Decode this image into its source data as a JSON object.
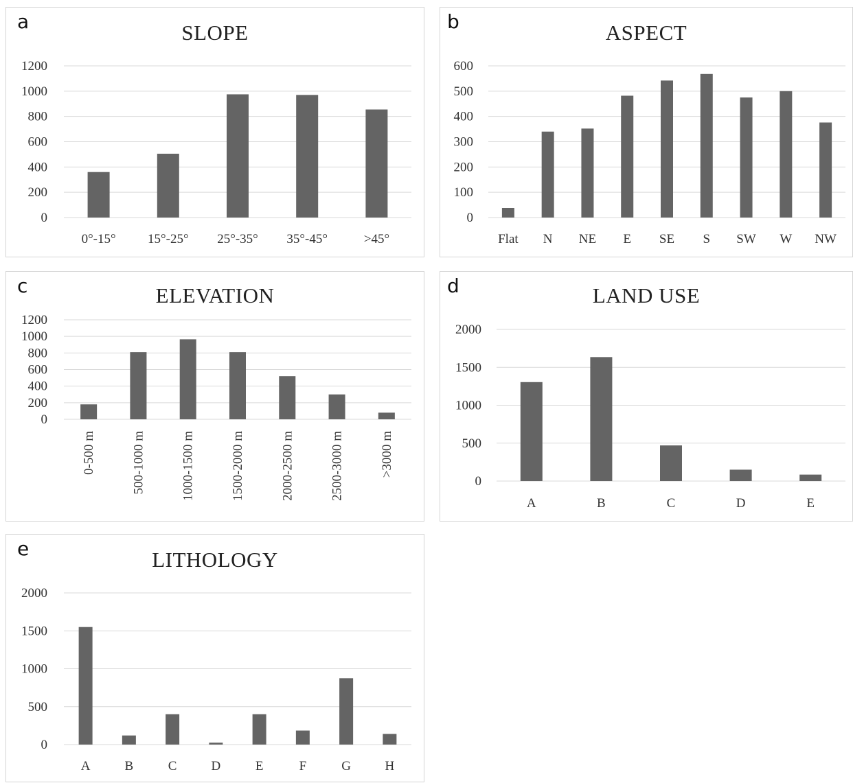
{
  "chart_data": [
    {
      "panel": "a",
      "type": "bar",
      "title": "SLOPE",
      "categories": [
        "0°-15°",
        "15°-25°",
        "25°-35°",
        "35°-45°",
        ">45°"
      ],
      "values": [
        360,
        505,
        975,
        970,
        855
      ],
      "yticks": [
        "0",
        "200",
        "400",
        "600",
        "800",
        "1000",
        "1200"
      ],
      "ylim": [
        0,
        1200
      ],
      "grid": true,
      "color": "#646464"
    },
    {
      "panel": "b",
      "type": "bar",
      "title": "ASPECT",
      "categories": [
        "Flat",
        "N",
        "NE",
        "E",
        "SE",
        "S",
        "SW",
        "W",
        "NW"
      ],
      "values": [
        38,
        340,
        352,
        482,
        542,
        568,
        475,
        500,
        376
      ],
      "yticks": [
        "0",
        "100",
        "200",
        "300",
        "400",
        "500",
        "600"
      ],
      "ylim": [
        0,
        600
      ],
      "grid": true,
      "color": "#646464"
    },
    {
      "panel": "c",
      "type": "bar",
      "title": "ELEVATION",
      "categories": [
        "0-500 m",
        "500-1000 m",
        "1000-1500 m",
        "1500-2000 m",
        "2000-2500 m",
        "2500-3000 m",
        ">3000 m"
      ],
      "values": [
        180,
        810,
        965,
        810,
        520,
        300,
        80
      ],
      "yticks": [
        "0",
        "200",
        "400",
        "600",
        "800",
        "1000",
        "1200"
      ],
      "ylim": [
        0,
        1200
      ],
      "grid": true,
      "rotated_labels": true,
      "color": "#646464"
    },
    {
      "panel": "d",
      "type": "bar",
      "title": "LAND USE",
      "categories": [
        "A",
        "B",
        "C",
        "D",
        "E"
      ],
      "values": [
        1305,
        1635,
        470,
        150,
        85
      ],
      "yticks": [
        "0",
        "500",
        "1000",
        "1500",
        "2000"
      ],
      "ylim": [
        0,
        2000
      ],
      "grid": true,
      "color": "#646464"
    },
    {
      "panel": "e",
      "type": "bar",
      "title": "LITHOLOGY",
      "categories": [
        "A",
        "B",
        "C",
        "D",
        "E",
        "F",
        "G",
        "H"
      ],
      "values": [
        1550,
        120,
        400,
        25,
        400,
        185,
        875,
        140
      ],
      "yticks": [
        "0",
        "500",
        "1000",
        "1500",
        "2000"
      ],
      "ylim": [
        0,
        2000
      ],
      "grid": true,
      "color": "#646464"
    }
  ]
}
